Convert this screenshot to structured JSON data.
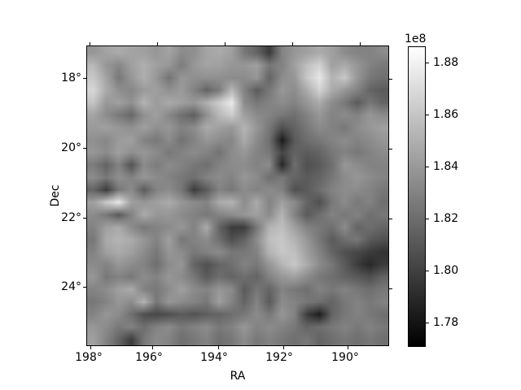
{
  "figure": {
    "background": "#ffffff",
    "text_color": "#000000"
  },
  "axes": {
    "xlabel": "RA",
    "ylabel": "Dec",
    "x_tick_labels": [
      "198°",
      "196°",
      "194°",
      "192°",
      "190°"
    ],
    "y_tick_labels": [
      "18°",
      "20°",
      "22°",
      "24°"
    ]
  },
  "colorbar": {
    "offset_label": "1e8",
    "tick_labels": [
      "1.88",
      "1.86",
      "1.84",
      "1.82",
      "1.80",
      "1.78"
    ]
  },
  "chart_data": {
    "type": "heatmap",
    "title": "",
    "xlabel": "RA",
    "ylabel": "Dec",
    "x_ticks_deg": [
      198,
      196,
      194,
      192,
      190
    ],
    "y_ticks_deg": [
      18,
      20,
      22,
      24
    ],
    "x_range_deg": [
      198.1,
      188.0
    ],
    "y_range_deg": [
      17.0,
      25.9
    ],
    "x_axis_direction": "RA decreasing to the right",
    "grid": false,
    "colormap": "gray",
    "colorbar": {
      "offset_label": "1e8",
      "ticks_1e8": [
        1.88,
        1.86,
        1.84,
        1.82,
        1.8,
        1.78
      ],
      "vmin_1e8": 1.771,
      "vmax_1e8": 1.886
    },
    "grid_rows": 24,
    "grid_cols": 24,
    "values_unit": "1e8",
    "values_1e8": [
      [
        1.839,
        1.845,
        1.848,
        1.845,
        1.843,
        1.839,
        1.845,
        1.834,
        1.836,
        1.845,
        1.848,
        1.843,
        1.825,
        1.816,
        1.798,
        1.83,
        1.839,
        1.843,
        1.848,
        1.843,
        1.834,
        1.83,
        1.83,
        1.834
      ],
      [
        1.854,
        1.839,
        1.832,
        1.843,
        1.85,
        1.843,
        1.839,
        1.827,
        1.839,
        1.845,
        1.843,
        1.839,
        1.839,
        1.843,
        1.825,
        1.83,
        1.843,
        1.857,
        1.866,
        1.843,
        1.848,
        1.839,
        1.83,
        1.825
      ],
      [
        1.861,
        1.845,
        1.825,
        1.839,
        1.85,
        1.839,
        1.823,
        1.839,
        1.836,
        1.836,
        1.836,
        1.834,
        1.834,
        1.839,
        1.816,
        1.834,
        1.839,
        1.861,
        1.875,
        1.852,
        1.861,
        1.839,
        1.825,
        1.821
      ],
      [
        1.868,
        1.848,
        1.836,
        1.832,
        1.841,
        1.843,
        1.836,
        1.841,
        1.83,
        1.816,
        1.827,
        1.854,
        1.83,
        1.812,
        1.825,
        1.839,
        1.834,
        1.848,
        1.866,
        1.848,
        1.839,
        1.83,
        1.816,
        1.812
      ],
      [
        1.859,
        1.839,
        1.843,
        1.836,
        1.852,
        1.841,
        1.848,
        1.843,
        1.839,
        1.85,
        1.863,
        1.877,
        1.834,
        1.825,
        1.83,
        1.834,
        1.83,
        1.839,
        1.848,
        1.834,
        1.825,
        1.812,
        1.825,
        1.816
      ],
      [
        1.845,
        1.834,
        1.825,
        1.818,
        1.836,
        1.843,
        1.832,
        1.821,
        1.814,
        1.836,
        1.854,
        1.863,
        1.843,
        1.834,
        1.83,
        1.825,
        1.821,
        1.83,
        1.839,
        1.83,
        1.834,
        1.83,
        1.839,
        1.834
      ],
      [
        1.841,
        1.843,
        1.839,
        1.836,
        1.843,
        1.836,
        1.839,
        1.83,
        1.834,
        1.848,
        1.843,
        1.839,
        1.852,
        1.839,
        1.825,
        1.807,
        1.816,
        1.825,
        1.834,
        1.83,
        1.825,
        1.834,
        1.839,
        1.843
      ],
      [
        1.836,
        1.832,
        1.841,
        1.843,
        1.83,
        1.825,
        1.834,
        1.823,
        1.83,
        1.839,
        1.834,
        1.832,
        1.848,
        1.834,
        1.821,
        1.784,
        1.812,
        1.821,
        1.825,
        1.83,
        1.834,
        1.83,
        1.834,
        1.839
      ],
      [
        1.839,
        1.834,
        1.843,
        1.836,
        1.839,
        1.834,
        1.825,
        1.83,
        1.834,
        1.83,
        1.823,
        1.834,
        1.839,
        1.83,
        1.825,
        1.803,
        1.816,
        1.812,
        1.816,
        1.825,
        1.83,
        1.825,
        1.83,
        1.834
      ],
      [
        1.827,
        1.816,
        1.83,
        1.809,
        1.834,
        1.827,
        1.834,
        1.83,
        1.825,
        1.821,
        1.83,
        1.834,
        1.834,
        1.83,
        1.834,
        1.789,
        1.821,
        1.807,
        1.812,
        1.821,
        1.839,
        1.834,
        1.83,
        1.83
      ],
      [
        1.834,
        1.825,
        1.836,
        1.83,
        1.839,
        1.834,
        1.83,
        1.825,
        1.821,
        1.83,
        1.834,
        1.83,
        1.839,
        1.834,
        1.821,
        1.825,
        1.816,
        1.812,
        1.816,
        1.825,
        1.834,
        1.839,
        1.834,
        1.83
      ],
      [
        1.816,
        1.798,
        1.825,
        1.834,
        1.812,
        1.83,
        1.834,
        1.825,
        1.798,
        1.812,
        1.83,
        1.825,
        1.834,
        1.83,
        1.834,
        1.83,
        1.807,
        1.812,
        1.821,
        1.83,
        1.834,
        1.834,
        1.83,
        1.825
      ],
      [
        1.843,
        1.861,
        1.875,
        1.843,
        1.839,
        1.843,
        1.848,
        1.839,
        1.834,
        1.83,
        1.848,
        1.852,
        1.834,
        1.848,
        1.83,
        1.843,
        1.834,
        1.816,
        1.807,
        1.825,
        1.834,
        1.825,
        1.83,
        1.821
      ],
      [
        1.834,
        1.825,
        1.812,
        1.83,
        1.848,
        1.839,
        1.839,
        1.834,
        1.83,
        1.825,
        1.83,
        1.834,
        1.839,
        1.843,
        1.834,
        1.852,
        1.83,
        1.812,
        1.821,
        1.83,
        1.825,
        1.83,
        1.821,
        1.825
      ],
      [
        1.83,
        1.843,
        1.848,
        1.834,
        1.825,
        1.83,
        1.834,
        1.839,
        1.83,
        1.848,
        1.816,
        1.798,
        1.798,
        1.825,
        1.852,
        1.857,
        1.843,
        1.83,
        1.825,
        1.821,
        1.834,
        1.816,
        1.821,
        1.816
      ],
      [
        1.825,
        1.848,
        1.852,
        1.848,
        1.839,
        1.83,
        1.843,
        1.825,
        1.83,
        1.834,
        1.821,
        1.807,
        1.816,
        1.834,
        1.857,
        1.861,
        1.852,
        1.839,
        1.825,
        1.812,
        1.821,
        1.825,
        1.812,
        1.807
      ],
      [
        1.83,
        1.843,
        1.848,
        1.843,
        1.834,
        1.825,
        1.839,
        1.834,
        1.825,
        1.83,
        1.834,
        1.825,
        1.825,
        1.83,
        1.852,
        1.861,
        1.857,
        1.843,
        1.83,
        1.816,
        1.807,
        1.803,
        1.798,
        1.794
      ],
      [
        1.834,
        1.83,
        1.839,
        1.834,
        1.83,
        1.821,
        1.834,
        1.839,
        1.816,
        1.807,
        1.816,
        1.821,
        1.83,
        1.825,
        1.839,
        1.852,
        1.861,
        1.848,
        1.834,
        1.825,
        1.812,
        1.798,
        1.789,
        1.798
      ],
      [
        1.839,
        1.825,
        1.83,
        1.825,
        1.834,
        1.83,
        1.839,
        1.834,
        1.825,
        1.812,
        1.821,
        1.816,
        1.821,
        1.816,
        1.83,
        1.839,
        1.843,
        1.834,
        1.825,
        1.821,
        1.816,
        1.812,
        1.807,
        1.816
      ],
      [
        1.83,
        1.834,
        1.843,
        1.848,
        1.83,
        1.825,
        1.834,
        1.843,
        1.834,
        1.83,
        1.839,
        1.834,
        1.812,
        1.825,
        1.816,
        1.83,
        1.825,
        1.821,
        1.83,
        1.825,
        1.83,
        1.825,
        1.821,
        1.825
      ],
      [
        1.825,
        1.83,
        1.839,
        1.834,
        1.852,
        1.825,
        1.839,
        1.834,
        1.83,
        1.825,
        1.843,
        1.83,
        1.816,
        1.83,
        1.812,
        1.834,
        1.83,
        1.825,
        1.821,
        1.816,
        1.825,
        1.83,
        1.825,
        1.83
      ],
      [
        1.83,
        1.839,
        1.834,
        1.821,
        1.807,
        1.803,
        1.807,
        1.812,
        1.809,
        1.814,
        1.816,
        1.821,
        1.825,
        1.834,
        1.825,
        1.839,
        1.83,
        1.798,
        1.784,
        1.816,
        1.825,
        1.83,
        1.825,
        1.821
      ],
      [
        1.839,
        1.834,
        1.825,
        1.83,
        1.821,
        1.83,
        1.834,
        1.825,
        1.83,
        1.834,
        1.825,
        1.83,
        1.839,
        1.83,
        1.834,
        1.83,
        1.825,
        1.816,
        1.821,
        1.825,
        1.83,
        1.825,
        1.83,
        1.825
      ],
      [
        1.843,
        1.83,
        1.816,
        1.798,
        1.825,
        1.834,
        1.83,
        1.821,
        1.825,
        1.83,
        1.821,
        1.825,
        1.834,
        1.825,
        1.83,
        1.825,
        1.821,
        1.825,
        1.816,
        1.821,
        1.825,
        1.821,
        1.825,
        1.821
      ]
    ]
  }
}
